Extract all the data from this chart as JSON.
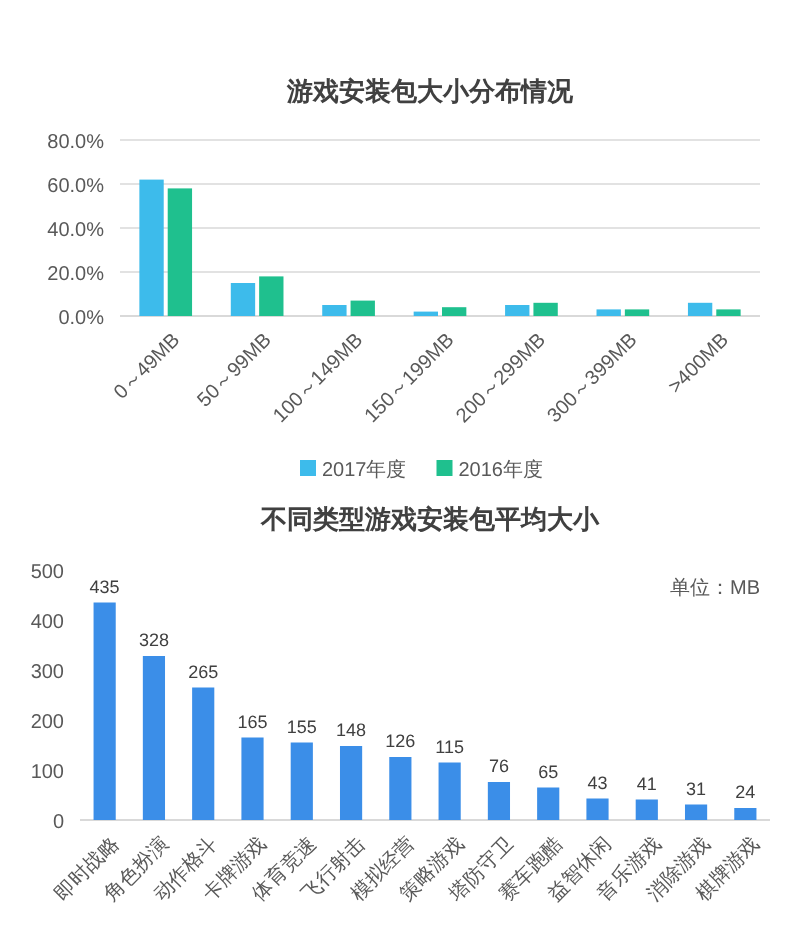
{
  "chart_data": [
    {
      "type": "bar",
      "title": "游戏安装包大小分布情况",
      "categories": [
        "0～49MB",
        "50～99MB",
        "100～149MB",
        "150～199MB",
        "200～299MB",
        "300～399MB",
        ">400MB"
      ],
      "series": [
        {
          "name": "2017年度",
          "color": "#3dbbeb",
          "values": [
            62,
            15,
            5,
            2,
            5,
            3,
            6
          ]
        },
        {
          "name": "2016年度",
          "color": "#1fc08e",
          "values": [
            58,
            18,
            7,
            4,
            6,
            3,
            3
          ]
        }
      ],
      "ylim": [
        0,
        80
      ],
      "yticks": [
        {
          "value": 0,
          "label": "0.0%"
        },
        {
          "value": 20,
          "label": "20.0%"
        },
        {
          "value": 40,
          "label": "40.0%"
        },
        {
          "value": 60,
          "label": "60.0%"
        },
        {
          "value": 80,
          "label": "80.0%"
        }
      ],
      "grid": "y",
      "legend": "bottom"
    },
    {
      "type": "bar",
      "title": "不同类型游戏安装包平均大小",
      "categories": [
        "即时战略",
        "角色扮演",
        "动作格斗",
        "卡牌游戏",
        "体育竞速",
        "飞行射击",
        "模拟经营",
        "策略游戏",
        "塔防守卫",
        "赛车跑酷",
        "益智休闲",
        "音乐游戏",
        "消除游戏",
        "棋牌游戏"
      ],
      "values": [
        435,
        328,
        265,
        165,
        155,
        148,
        126,
        115,
        76,
        65,
        43,
        41,
        31,
        24
      ],
      "color": "#3b8ee8",
      "ylim": [
        0,
        500
      ],
      "yticks": [
        0,
        100,
        200,
        300,
        400,
        500
      ],
      "data_labels": true,
      "annotations": [
        "单位：MB"
      ]
    }
  ]
}
